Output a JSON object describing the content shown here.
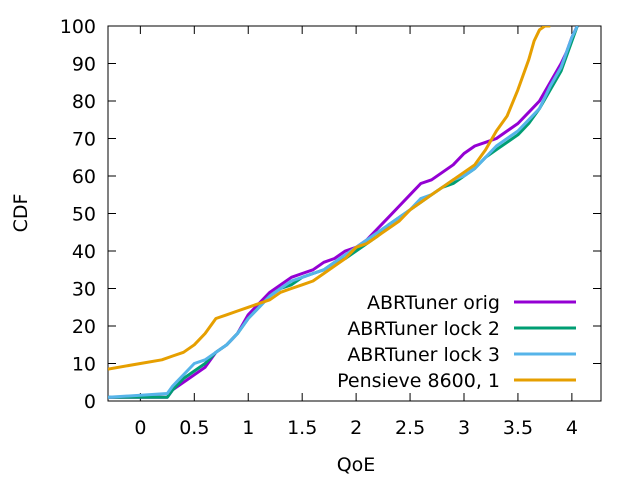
{
  "chart_data": {
    "type": "line",
    "title": "",
    "xlabel": "QoE",
    "ylabel": "CDF",
    "xlim": [
      -0.3,
      4.27
    ],
    "ylim": [
      0,
      100
    ],
    "xticks": [
      0,
      0.5,
      1,
      1.5,
      2,
      2.5,
      3,
      3.5,
      4
    ],
    "xtick_labels": [
      "0",
      "0.5",
      "1",
      "1.5",
      "2",
      "2.5",
      "3",
      "3.5",
      "4"
    ],
    "yticks": [
      0,
      10,
      20,
      30,
      40,
      50,
      60,
      70,
      80,
      90,
      100
    ],
    "ytick_labels": [
      "0",
      "10",
      "20",
      "30",
      "40",
      "50",
      "60",
      "70",
      "80",
      "90",
      "100"
    ],
    "grid": false,
    "legend_position": "bottom-right",
    "series": [
      {
        "name": "ABRTuner orig",
        "color": "#9400d3",
        "points": [
          [
            -0.3,
            1
          ],
          [
            0.25,
            1
          ],
          [
            0.3,
            3
          ],
          [
            0.4,
            5
          ],
          [
            0.5,
            7
          ],
          [
            0.6,
            9
          ],
          [
            0.7,
            13
          ],
          [
            0.8,
            15
          ],
          [
            0.9,
            18
          ],
          [
            1.0,
            23
          ],
          [
            1.1,
            26
          ],
          [
            1.2,
            29
          ],
          [
            1.3,
            31
          ],
          [
            1.4,
            33
          ],
          [
            1.5,
            34
          ],
          [
            1.6,
            35
          ],
          [
            1.7,
            37
          ],
          [
            1.8,
            38
          ],
          [
            1.9,
            40
          ],
          [
            2.0,
            41
          ],
          [
            2.1,
            43
          ],
          [
            2.2,
            46
          ],
          [
            2.3,
            49
          ],
          [
            2.4,
            52
          ],
          [
            2.5,
            55
          ],
          [
            2.6,
            58
          ],
          [
            2.7,
            59
          ],
          [
            2.8,
            61
          ],
          [
            2.9,
            63
          ],
          [
            3.0,
            66
          ],
          [
            3.1,
            68
          ],
          [
            3.2,
            69
          ],
          [
            3.3,
            70
          ],
          [
            3.4,
            72
          ],
          [
            3.5,
            74
          ],
          [
            3.6,
            77
          ],
          [
            3.7,
            80
          ],
          [
            3.8,
            85
          ],
          [
            3.9,
            90
          ],
          [
            3.95,
            93
          ],
          [
            4.0,
            97
          ],
          [
            4.05,
            100
          ]
        ]
      },
      {
        "name": "ABRTuner lock 2",
        "color": "#009e73",
        "points": [
          [
            -0.3,
            1
          ],
          [
            0.25,
            1
          ],
          [
            0.3,
            3
          ],
          [
            0.4,
            6
          ],
          [
            0.5,
            8
          ],
          [
            0.6,
            10
          ],
          [
            0.7,
            13
          ],
          [
            0.8,
            15
          ],
          [
            0.9,
            18
          ],
          [
            1.0,
            22
          ],
          [
            1.1,
            25
          ],
          [
            1.2,
            28
          ],
          [
            1.3,
            30
          ],
          [
            1.4,
            31
          ],
          [
            1.5,
            33
          ],
          [
            1.6,
            34
          ],
          [
            1.7,
            35
          ],
          [
            1.8,
            37
          ],
          [
            1.9,
            38
          ],
          [
            2.0,
            40
          ],
          [
            2.1,
            42
          ],
          [
            2.2,
            44
          ],
          [
            2.3,
            47
          ],
          [
            2.4,
            49
          ],
          [
            2.5,
            51
          ],
          [
            2.6,
            53
          ],
          [
            2.7,
            55
          ],
          [
            2.8,
            57
          ],
          [
            2.9,
            58
          ],
          [
            3.0,
            60
          ],
          [
            3.1,
            62
          ],
          [
            3.2,
            65
          ],
          [
            3.3,
            67
          ],
          [
            3.4,
            69
          ],
          [
            3.5,
            71
          ],
          [
            3.6,
            74
          ],
          [
            3.7,
            78
          ],
          [
            3.8,
            83
          ],
          [
            3.9,
            88
          ],
          [
            3.95,
            92
          ],
          [
            4.0,
            96
          ],
          [
            4.05,
            100
          ]
        ]
      },
      {
        "name": "ABRTuner lock 3",
        "color": "#56b4e9",
        "points": [
          [
            -0.3,
            1
          ],
          [
            0.25,
            2
          ],
          [
            0.3,
            4
          ],
          [
            0.4,
            7
          ],
          [
            0.5,
            10
          ],
          [
            0.6,
            11
          ],
          [
            0.7,
            13
          ],
          [
            0.8,
            15
          ],
          [
            0.9,
            18
          ],
          [
            1.0,
            22
          ],
          [
            1.1,
            25
          ],
          [
            1.2,
            28
          ],
          [
            1.3,
            30
          ],
          [
            1.4,
            32
          ],
          [
            1.5,
            33
          ],
          [
            1.6,
            34
          ],
          [
            1.7,
            35
          ],
          [
            1.8,
            37
          ],
          [
            1.9,
            39
          ],
          [
            2.0,
            41
          ],
          [
            2.1,
            43
          ],
          [
            2.2,
            45
          ],
          [
            2.3,
            47
          ],
          [
            2.4,
            49
          ],
          [
            2.5,
            51
          ],
          [
            2.6,
            54
          ],
          [
            2.7,
            55
          ],
          [
            2.8,
            57
          ],
          [
            2.9,
            59
          ],
          [
            3.0,
            60
          ],
          [
            3.1,
            62
          ],
          [
            3.2,
            65
          ],
          [
            3.3,
            68
          ],
          [
            3.4,
            70
          ],
          [
            3.5,
            72
          ],
          [
            3.6,
            75
          ],
          [
            3.7,
            78
          ],
          [
            3.8,
            84
          ],
          [
            3.9,
            89
          ],
          [
            3.95,
            93
          ],
          [
            4.0,
            97
          ],
          [
            4.05,
            100
          ]
        ]
      },
      {
        "name": "Pensieve 8600, 1",
        "color": "#e69f00",
        "points": [
          [
            -0.3,
            8.5
          ],
          [
            0.0,
            10
          ],
          [
            0.2,
            11
          ],
          [
            0.3,
            12
          ],
          [
            0.4,
            13
          ],
          [
            0.5,
            15
          ],
          [
            0.6,
            18
          ],
          [
            0.7,
            22
          ],
          [
            0.8,
            23
          ],
          [
            0.9,
            24
          ],
          [
            1.0,
            25
          ],
          [
            1.1,
            26
          ],
          [
            1.2,
            27
          ],
          [
            1.3,
            29
          ],
          [
            1.4,
            30
          ],
          [
            1.5,
            31
          ],
          [
            1.6,
            32
          ],
          [
            1.7,
            34
          ],
          [
            1.8,
            36
          ],
          [
            1.9,
            38
          ],
          [
            2.0,
            41
          ],
          [
            2.1,
            42
          ],
          [
            2.2,
            44
          ],
          [
            2.3,
            46
          ],
          [
            2.4,
            48
          ],
          [
            2.5,
            51
          ],
          [
            2.6,
            53
          ],
          [
            2.7,
            55
          ],
          [
            2.8,
            57
          ],
          [
            2.9,
            59
          ],
          [
            3.0,
            61
          ],
          [
            3.1,
            63
          ],
          [
            3.2,
            67
          ],
          [
            3.3,
            72
          ],
          [
            3.4,
            76
          ],
          [
            3.5,
            83
          ],
          [
            3.6,
            91
          ],
          [
            3.65,
            96
          ],
          [
            3.7,
            99
          ],
          [
            3.75,
            100
          ],
          [
            3.8,
            100
          ]
        ]
      }
    ]
  }
}
